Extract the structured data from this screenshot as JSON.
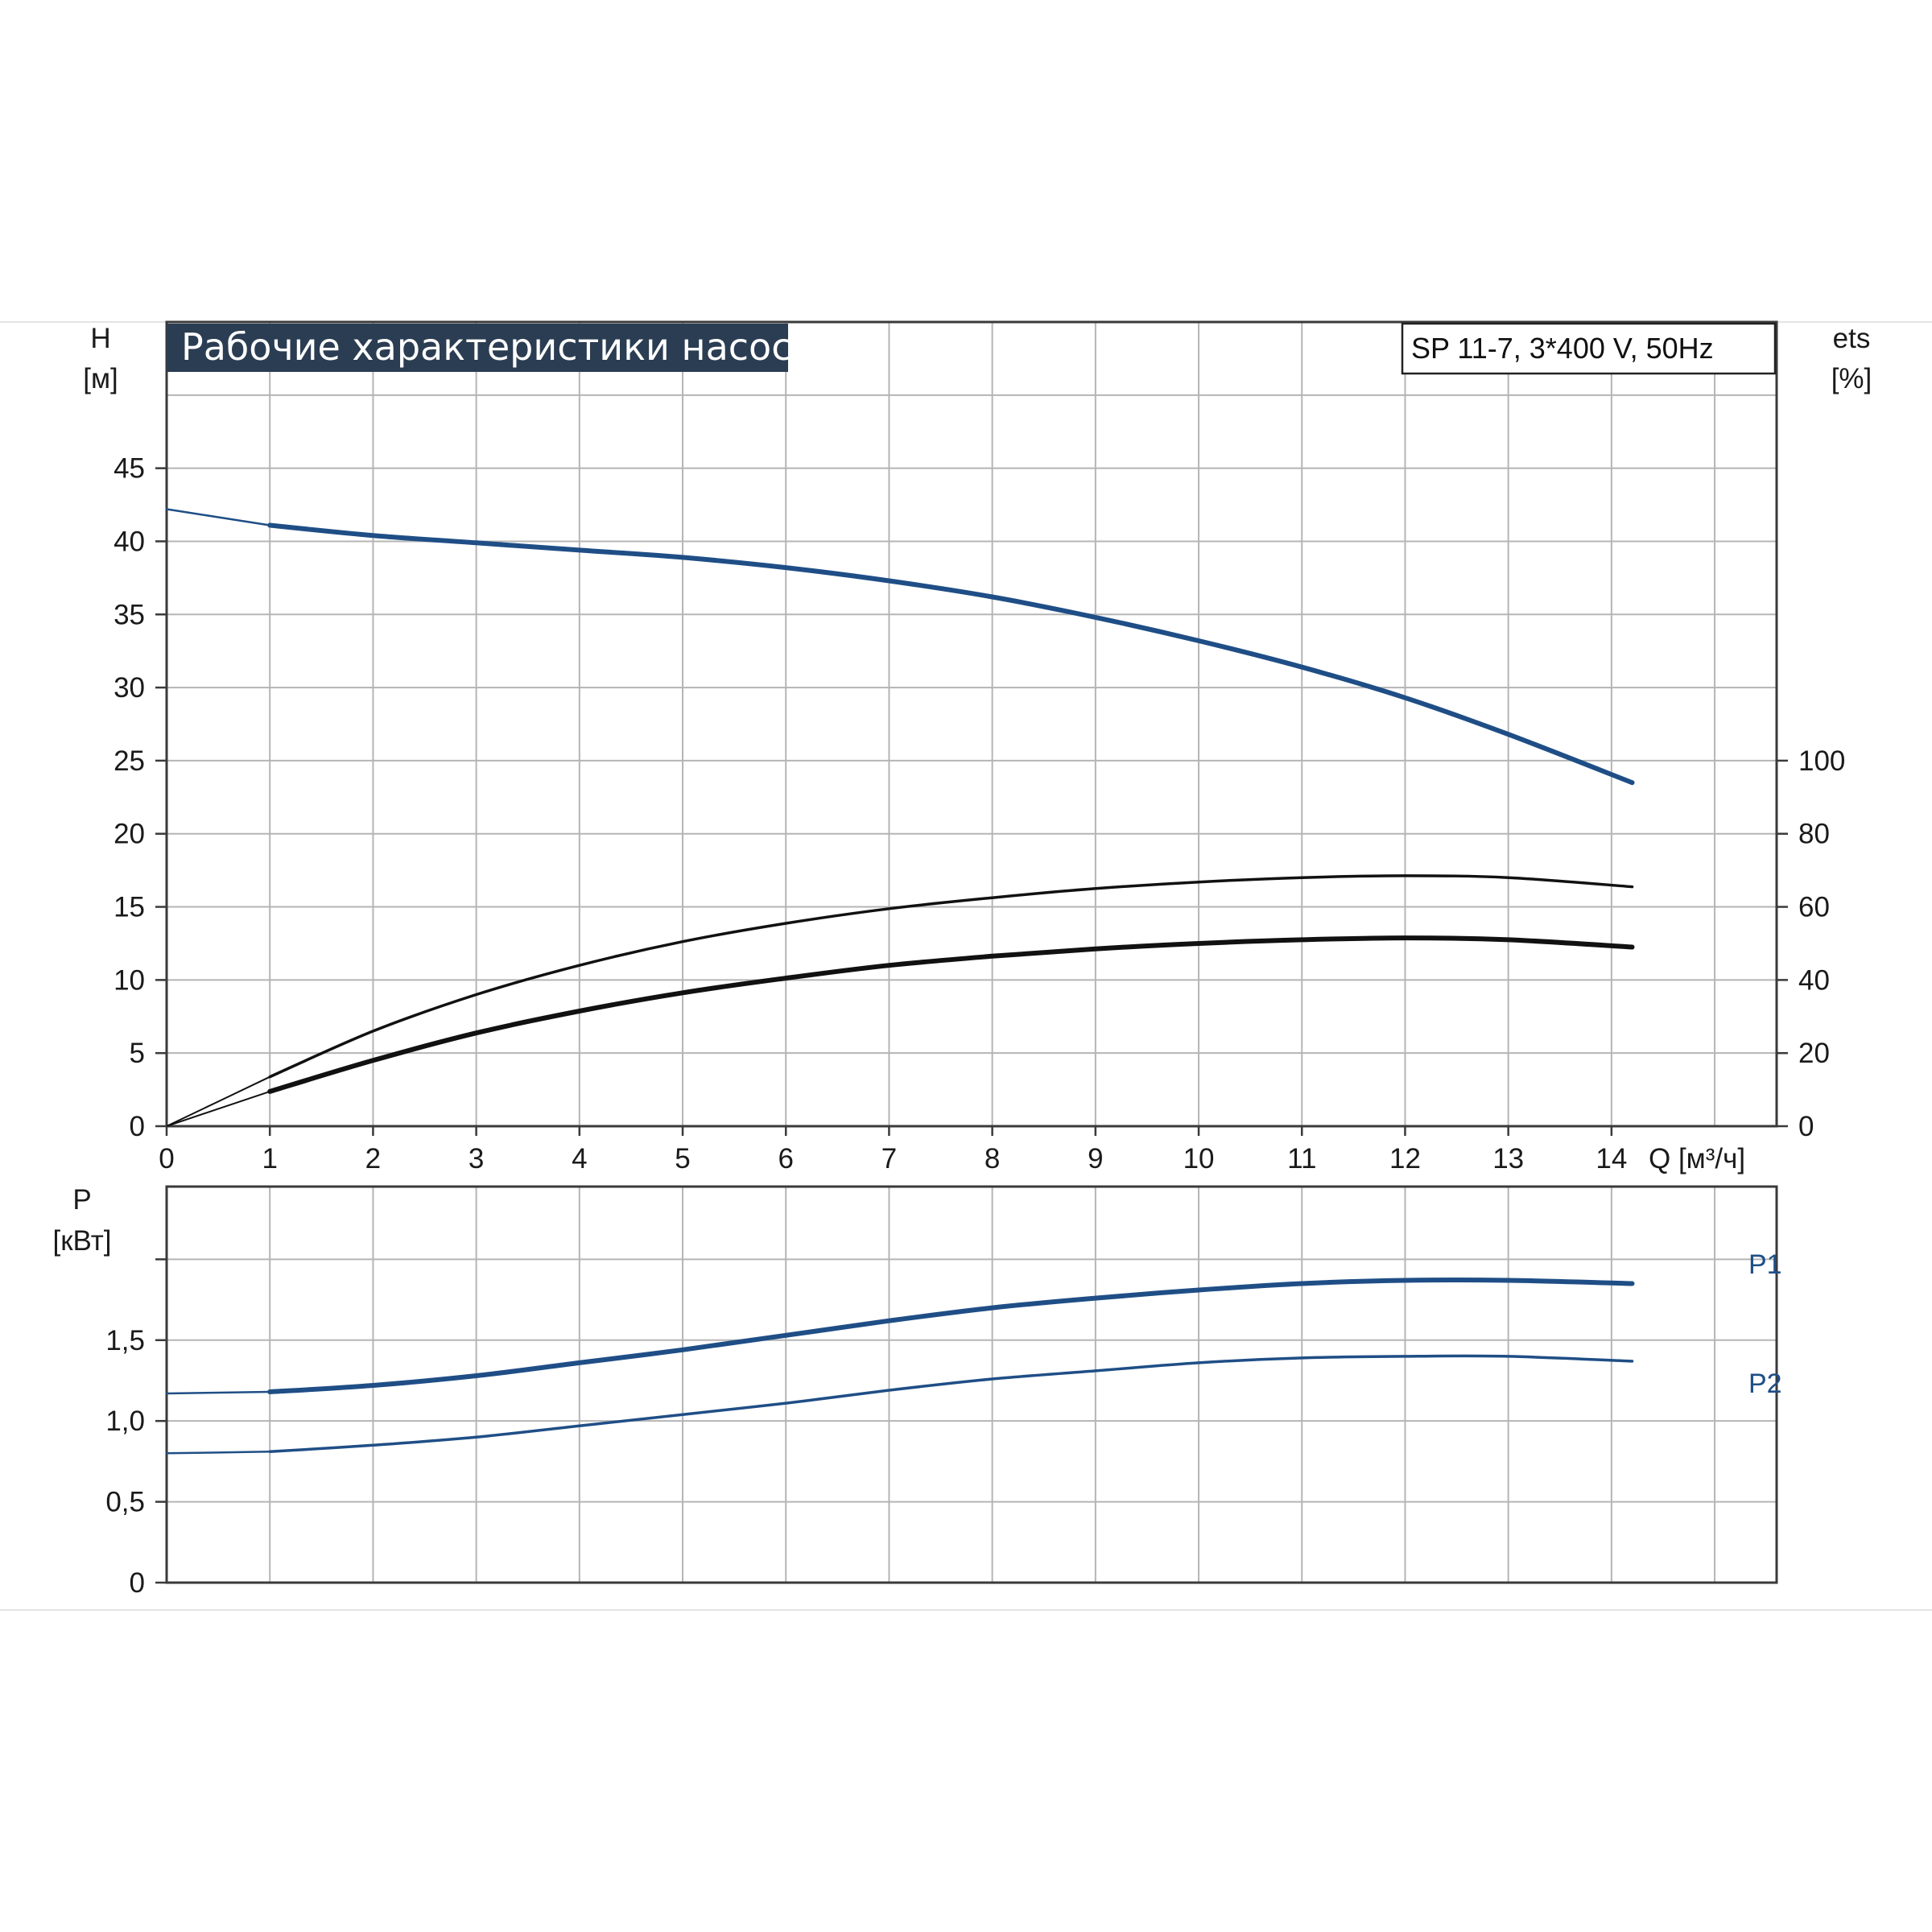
{
  "chart_data": {
    "title": "Рабочие характеристики насоса",
    "model_label": "SP 11-7, 3*400 V, 50Hz",
    "colors": {
      "head": "#1f4e86",
      "power": "#1f4e86",
      "efficiency": "#111111",
      "title_bg": "#2b3d52",
      "grid": "#b5b5b5"
    },
    "x_axis": {
      "label": "Q [м³/ч]",
      "range": [
        0,
        15.6
      ],
      "ticks": [
        0,
        1,
        2,
        3,
        4,
        5,
        6,
        7,
        8,
        9,
        10,
        11,
        12,
        13,
        14
      ],
      "tick_labels": [
        "0",
        "1",
        "2",
        "3",
        "4",
        "5",
        "6",
        "7",
        "8",
        "9",
        "10",
        "11",
        "12",
        "13",
        "14"
      ]
    },
    "top_panel": {
      "type": "line",
      "left_axis": {
        "label_line1": "H",
        "label_line2": "[м]",
        "range": [
          0,
          55
        ],
        "ticks": [
          0,
          5,
          10,
          15,
          20,
          25,
          30,
          35,
          40,
          45
        ],
        "tick_labels": [
          "0",
          "5",
          "10",
          "15",
          "20",
          "25",
          "30",
          "35",
          "40",
          "45"
        ]
      },
      "right_axis": {
        "label_line1": "ets",
        "label_line2": "[%]",
        "range": [
          0,
          220
        ],
        "ticks": [
          0,
          20,
          40,
          60,
          80,
          100
        ],
        "tick_labels": [
          "0",
          "20",
          "40",
          "60",
          "80",
          "100"
        ]
      },
      "series": [
        {
          "key": "head",
          "axis": "left",
          "x": [
            0,
            1,
            2,
            3,
            4,
            5,
            6,
            7,
            8,
            9,
            10,
            11,
            12,
            13,
            14.2
          ],
          "y": [
            42.2,
            41.1,
            40.4,
            39.9,
            39.4,
            38.9,
            38.2,
            37.3,
            36.2,
            34.8,
            33.2,
            31.4,
            29.3,
            26.8,
            23.5
          ]
        },
        {
          "key": "efficiency-upper",
          "axis": "right",
          "x": [
            0,
            1,
            2,
            3,
            4,
            5,
            6,
            7,
            8,
            9,
            10,
            11,
            12,
            13,
            14.2
          ],
          "y": [
            0,
            13.5,
            26,
            36,
            44,
            50.5,
            55.5,
            59.5,
            62.5,
            65,
            66.8,
            68,
            68.5,
            68,
            65.5
          ]
        },
        {
          "key": "efficiency-lower",
          "axis": "right",
          "x": [
            0,
            1,
            2,
            3,
            4,
            5,
            6,
            7,
            8,
            9,
            10,
            11,
            12,
            13,
            14.2
          ],
          "y": [
            0,
            9.5,
            18,
            25.5,
            31.5,
            36.5,
            40.5,
            44,
            46.5,
            48.5,
            50,
            51,
            51.5,
            51,
            49
          ]
        }
      ],
      "grid": true
    },
    "bottom_panel": {
      "type": "line",
      "left_axis": {
        "label_line1": "P",
        "label_line2": "[кВт]",
        "range": [
          0,
          2.45
        ],
        "ticks": [
          0,
          0.5,
          1.0,
          1.5,
          2.0
        ],
        "tick_labels": [
          "0",
          "0,5",
          "1,0",
          "1,5",
          ""
        ]
      },
      "series": [
        {
          "name": "P1",
          "x": [
            0,
            1,
            2,
            3,
            4,
            5,
            6,
            7,
            8,
            9,
            10,
            11,
            12,
            13,
            14.2
          ],
          "y": [
            1.17,
            1.18,
            1.22,
            1.28,
            1.36,
            1.44,
            1.53,
            1.62,
            1.7,
            1.76,
            1.81,
            1.85,
            1.87,
            1.87,
            1.85
          ]
        },
        {
          "name": "P2",
          "x": [
            0,
            1,
            2,
            3,
            4,
            5,
            6,
            7,
            8,
            9,
            10,
            11,
            12,
            13,
            14.2
          ],
          "y": [
            0.8,
            0.81,
            0.85,
            0.9,
            0.97,
            1.04,
            1.11,
            1.19,
            1.26,
            1.31,
            1.36,
            1.39,
            1.4,
            1.4,
            1.37
          ]
        }
      ],
      "grid": true
    }
  }
}
